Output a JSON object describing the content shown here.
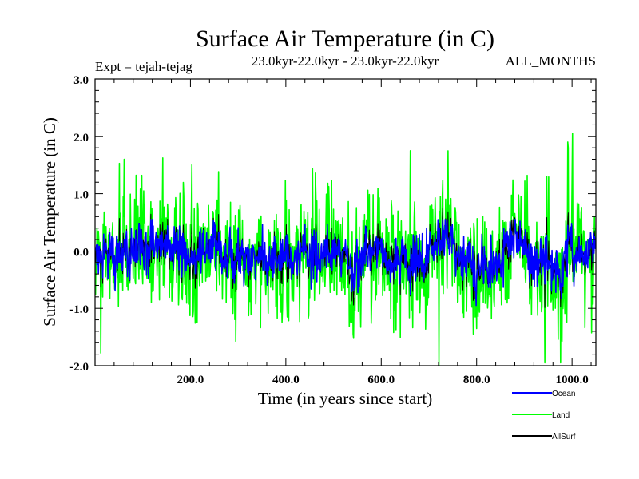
{
  "chart_data": {
    "type": "line",
    "title": "Surface Air Temperature (in C)",
    "subtitle_left": "Expt = tejah-tejag",
    "subtitle_center": "23.0kyr-22.0kyr - 23.0kyr-22.0kyr",
    "subtitle_right": "ALL_MONTHS",
    "xlabel": "Time (in years since start)",
    "ylabel": "Surface Air Temperature (in C)",
    "xlim": [
      0,
      1050
    ],
    "ylim": [
      -2.0,
      3.0
    ],
    "x_ticks": [
      200,
      400,
      600,
      800,
      1000
    ],
    "x_tick_labels": [
      "200.0",
      "400.0",
      "600.0",
      "800.0",
      "1000.0"
    ],
    "y_ticks": [
      -2.0,
      -1.0,
      0.0,
      1.0,
      2.0,
      3.0
    ],
    "y_tick_labels": [
      "-2.0",
      "-1.0",
      "0.0",
      "1.0",
      "2.0",
      "3.0"
    ],
    "series": [
      {
        "name": "Land",
        "color": "#00ff00",
        "n_points": 1050,
        "mean": 0.0,
        "std_approx": 0.55,
        "observed_max": 2.05,
        "observed_min": -2.0,
        "notable_points": [
          [
            720,
            -2.0
          ],
          [
            1000,
            2.05
          ],
          [
            990,
            1.9
          ],
          [
            660,
            1.75
          ],
          [
            60,
            1.6
          ]
        ]
      },
      {
        "name": "Ocean",
        "color": "#0000ff",
        "n_points": 1050,
        "mean": 0.0,
        "std_approx": 0.2,
        "observed_max": 0.55,
        "observed_min": -1.0
      },
      {
        "name": "AllSurf",
        "color": "#000000",
        "n_points": 1050,
        "mean": 0.0,
        "std_approx": 0.2
      }
    ],
    "legend": [
      "Ocean",
      "Land",
      "AllSurf"
    ],
    "legend_position": "bottom-right"
  }
}
